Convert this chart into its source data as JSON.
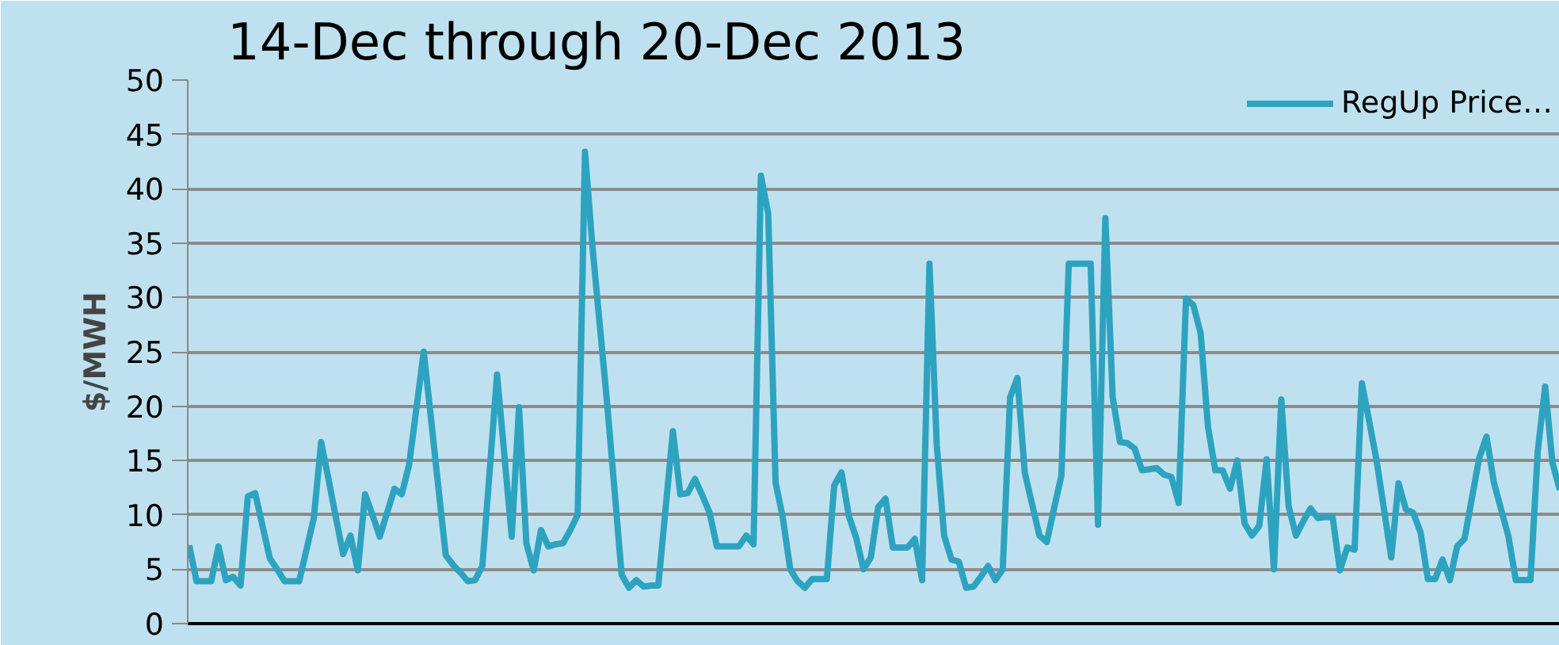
{
  "chart_data": {
    "type": "line",
    "title": "14-Dec through 20-Dec 2013",
    "ylabel": "$/MWH",
    "categories": [
      null,
      null,
      null,
      null,
      null,
      null,
      null,
      null,
      null,
      null,
      null,
      null,
      null,
      null,
      null,
      null,
      null,
      null,
      null,
      null,
      null,
      null,
      null,
      null,
      null,
      null,
      null,
      null,
      null,
      null,
      null,
      null,
      null,
      null,
      null,
      null,
      null,
      null,
      null,
      null,
      null,
      null,
      null,
      null,
      null,
      null,
      null,
      null,
      null,
      null,
      null,
      null,
      null,
      null,
      null,
      null,
      null,
      null,
      null,
      null,
      null,
      null,
      null,
      null,
      null,
      null,
      null,
      null,
      null,
      null,
      null,
      null,
      null,
      null,
      null,
      null,
      null,
      null,
      null,
      null,
      null,
      null,
      null,
      null,
      null,
      null,
      null,
      null,
      null,
      null,
      null,
      null,
      null,
      null,
      null,
      null,
      null,
      null,
      null,
      null,
      null,
      null,
      null,
      null,
      null,
      null,
      null,
      null,
      null,
      null,
      null,
      null,
      null,
      null,
      null,
      null,
      null,
      null,
      null,
      null,
      null,
      null,
      null,
      null,
      null,
      null,
      null,
      null,
      null,
      null,
      null,
      null,
      null,
      null,
      null,
      null,
      null,
      null,
      null,
      null,
      null,
      null,
      null,
      null,
      null,
      null,
      null,
      null,
      null,
      null,
      null,
      null,
      null,
      null,
      null,
      null,
      null,
      null,
      null,
      null,
      null,
      null,
      null,
      null,
      null,
      null,
      null,
      null,
      null,
      null,
      null,
      null,
      null,
      null,
      null,
      null,
      null,
      null,
      null,
      null,
      null,
      null,
      null,
      null,
      null,
      null,
      null,
      null
    ],
    "series": [
      {
        "name": "RegUp Price…",
        "color": "#2ea3c0",
        "values": [
          7.2,
          3.9,
          3.9,
          3.9,
          7.1,
          4.0,
          4.3,
          3.5,
          11.7,
          12.0,
          9.0,
          6.0,
          5.0,
          3.9,
          3.9,
          3.9,
          6.8,
          9.7,
          16.7,
          13.3,
          9.8,
          6.4,
          8.1,
          4.9,
          11.9,
          10.0,
          8.0,
          10.2,
          12.4,
          11.9,
          14.6,
          19.8,
          25.0,
          18.8,
          12.5,
          6.3,
          5.4,
          4.7,
          3.9,
          4.0,
          5.3,
          14.1,
          22.9,
          15.5,
          8.0,
          19.9,
          7.4,
          4.9,
          8.6,
          7.1,
          7.3,
          7.4,
          8.6,
          10.0,
          43.4,
          34.8,
          27.6,
          20.4,
          12.5,
          4.5,
          3.3,
          4.0,
          3.4,
          3.5,
          3.5,
          10.6,
          17.7,
          11.9,
          12.0,
          13.3,
          11.8,
          10.2,
          7.1,
          7.1,
          7.1,
          7.1,
          8.1,
          7.3,
          41.2,
          37.7,
          13.0,
          9.7,
          5.0,
          3.9,
          3.3,
          4.1,
          4.1,
          4.1,
          12.7,
          13.9,
          9.9,
          7.9,
          5.0,
          6.1,
          10.7,
          11.5,
          7.0,
          7.0,
          7.0,
          7.8,
          4.0,
          33.1,
          16.4,
          8.1,
          5.9,
          5.7,
          3.3,
          3.4,
          4.3,
          5.3,
          4.0,
          5.0,
          20.8,
          22.6,
          13.9,
          11.0,
          8.1,
          7.5,
          10.6,
          13.6,
          33.1,
          33.1,
          33.1,
          33.1,
          9.1,
          37.3,
          20.8,
          16.7,
          16.6,
          16.1,
          14.1,
          14.2,
          14.3,
          13.7,
          13.5,
          11.1,
          29.9,
          29.3,
          26.7,
          18.1,
          14.1,
          14.1,
          12.4,
          15.0,
          9.2,
          8.1,
          9.0,
          15.1,
          5.0,
          20.6,
          10.8,
          8.1,
          9.4,
          10.6,
          9.7,
          9.8,
          9.8,
          4.9,
          7.0,
          6.8,
          22.1,
          18.6,
          15.0,
          10.6,
          6.1,
          12.9,
          10.5,
          10.2,
          8.4,
          4.1,
          4.1,
          5.9,
          4.0,
          7.1,
          7.8,
          11.5,
          15.2,
          17.2,
          13.0,
          10.5,
          8.0,
          4.0,
          4.0,
          4.0,
          15.9,
          21.8,
          14.8,
          12.3
        ]
      }
    ],
    "ylim": [
      0,
      50
    ],
    "yticks": [
      0,
      5,
      10,
      15,
      20,
      25,
      30,
      35,
      40,
      45,
      50
    ],
    "grid": "y",
    "legend": "top right",
    "tick_labels": "y"
  }
}
